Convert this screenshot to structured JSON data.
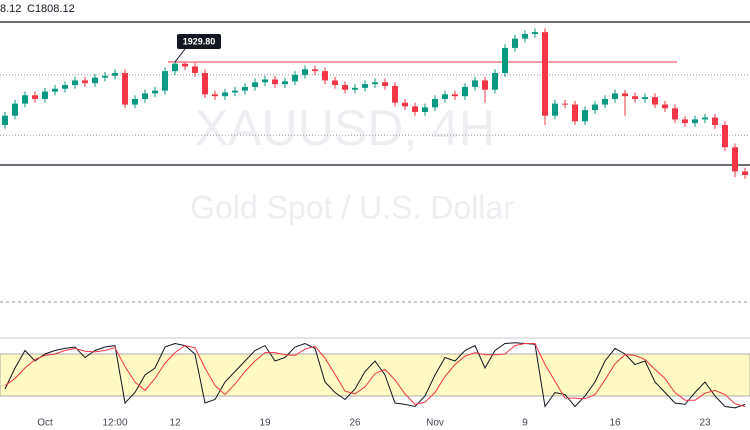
{
  "chart_data": {
    "type": "candlestick",
    "header": [
      "8.12",
      "C1808.12"
    ],
    "watermark": [
      "XAUUSD, 4H",
      "Gold Spot / U.S. Dollar"
    ],
    "categories": [
      null,
      null,
      null,
      null,
      "Oct",
      null,
      null,
      null,
      null,
      null,
      null,
      "12:00",
      null,
      null,
      null,
      null,
      null,
      "12",
      null,
      null,
      null,
      null,
      null,
      null,
      null,
      null,
      "19",
      null,
      null,
      null,
      null,
      null,
      null,
      null,
      null,
      "26",
      null,
      null,
      null,
      null,
      null,
      null,
      null,
      "Nov",
      null,
      null,
      null,
      null,
      null,
      null,
      null,
      null,
      "9",
      null,
      null,
      null,
      null,
      null,
      null,
      null,
      null,
      "16",
      null,
      null,
      null,
      null,
      null,
      null,
      null,
      null,
      "23",
      null,
      null,
      null,
      null
    ],
    "open": [
      1862,
      1872,
      1885,
      1894,
      1890,
      1898,
      1901,
      1905,
      1910,
      1907,
      1913,
      1915,
      1918,
      1884,
      1890,
      1896,
      1899,
      1920,
      1928,
      1925,
      1918,
      1895,
      1893,
      1897,
      1899,
      1903,
      1908,
      1911,
      1906,
      1909,
      1916,
      1922,
      1920,
      1910,
      1905,
      1900,
      1902,
      1906,
      1908,
      1904,
      1886,
      1882,
      1876,
      1881,
      1890,
      1895,
      1893,
      1903,
      1910,
      1900,
      1918,
      1945,
      1955,
      1960,
      1962,
      1872,
      1885,
      1884,
      1866,
      1878,
      1884,
      1890,
      1896,
      1893,
      1890,
      1892,
      1884,
      1880,
      1868,
      1864,
      1868,
      1870,
      1862,
      1838,
      1812
    ],
    "high": [
      1876,
      1889,
      1898,
      1898,
      1902,
      1905,
      1909,
      1914,
      1914,
      1917,
      1919,
      1922,
      1922,
      1894,
      1900,
      1903,
      1924,
      1929.8,
      1929,
      1929,
      1922,
      1899,
      1901,
      1903,
      1907,
      1912,
      1915,
      1915,
      1913,
      1920,
      1926,
      1926,
      1924,
      1914,
      1909,
      1906,
      1910,
      1912,
      1912,
      1908,
      1890,
      1886,
      1885,
      1894,
      1899,
      1899,
      1907,
      1914,
      1914,
      1922,
      1949,
      1959,
      1964,
      1966,
      1966,
      1889,
      1889,
      1888,
      1882,
      1888,
      1894,
      1900,
      1900,
      1897,
      1896,
      1896,
      1888,
      1884,
      1872,
      1872,
      1874,
      1874,
      1866,
      1842,
      1816
    ],
    "low": [
      1858,
      1868,
      1881,
      1886,
      1886,
      1894,
      1897,
      1901,
      1903,
      1903,
      1909,
      1911,
      1880,
      1880,
      1886,
      1892,
      1895,
      1916,
      1921,
      1914,
      1891,
      1889,
      1889,
      1893,
      1895,
      1899,
      1904,
      1902,
      1902,
      1905,
      1912,
      1916,
      1906,
      1901,
      1896,
      1896,
      1898,
      1902,
      1900,
      1882,
      1878,
      1872,
      1872,
      1877,
      1886,
      1889,
      1889,
      1899,
      1886,
      1896,
      1914,
      1941,
      1951,
      1956,
      1862,
      1868,
      1880,
      1862,
      1862,
      1874,
      1880,
      1886,
      1872,
      1886,
      1886,
      1880,
      1876,
      1864,
      1860,
      1860,
      1864,
      1858,
      1834,
      1806,
      1804
    ],
    "close": [
      1872,
      1885,
      1894,
      1890,
      1898,
      1901,
      1905,
      1910,
      1907,
      1913,
      1915,
      1918,
      1884,
      1890,
      1896,
      1899,
      1920,
      1928,
      1925,
      1918,
      1895,
      1893,
      1897,
      1899,
      1903,
      1908,
      1911,
      1906,
      1909,
      1916,
      1922,
      1920,
      1910,
      1905,
      1900,
      1902,
      1906,
      1908,
      1904,
      1886,
      1882,
      1876,
      1881,
      1890,
      1895,
      1893,
      1903,
      1910,
      1900,
      1918,
      1945,
      1955,
      1960,
      1962,
      1872,
      1885,
      1884,
      1866,
      1878,
      1884,
      1890,
      1896,
      1893,
      1890,
      1892,
      1884,
      1880,
      1868,
      1864,
      1868,
      1870,
      1862,
      1838,
      1812,
      1808.12
    ],
    "up_color": "#089981",
    "down_color": "#f23645",
    "ylim": [
      1673.5,
      1996.6
    ],
    "levels": [
      {
        "value": 1972.9,
        "color": "#131722"
      },
      {
        "value": 1818.9,
        "color": "#131722"
      }
    ],
    "dotted_levels": [
      1916,
      1851
    ],
    "annotation": {
      "value": 1929.8,
      "label": "1929.80",
      "color": "#f23645"
    },
    "oscillator": {
      "ylim": [
        0,
        100
      ],
      "band": [
        20,
        80
      ],
      "band_color": "#fff9c4",
      "series": [
        {
          "color": "#131722",
          "values": [
            30,
            60,
            85,
            70,
            80,
            85,
            88,
            90,
            75,
            85,
            90,
            92,
            10,
            25,
            50,
            60,
            90,
            95,
            92,
            80,
            10,
            15,
            40,
            55,
            70,
            85,
            92,
            70,
            75,
            90,
            95,
            88,
            40,
            25,
            15,
            30,
            55,
            70,
            50,
            10,
            8,
            5,
            20,
            50,
            75,
            70,
            85,
            92,
            60,
            85,
            95,
            96,
            95,
            94,
            5,
            25,
            22,
            5,
            20,
            40,
            70,
            88,
            80,
            65,
            70,
            40,
            25,
            10,
            8,
            25,
            40,
            20,
            5,
            3,
            8
          ]
        },
        {
          "color": "#f23645",
          "values": [
            35,
            45,
            60,
            72,
            78,
            80,
            85,
            88,
            84,
            83,
            85,
            89,
            62,
            40,
            28,
            45,
            67,
            82,
            92,
            89,
            60,
            35,
            22,
            37,
            55,
            70,
            82,
            82,
            79,
            78,
            87,
            91,
            74,
            51,
            27,
            23,
            33,
            52,
            58,
            43,
            23,
            8,
            11,
            25,
            48,
            65,
            77,
            82,
            79,
            79,
            80,
            92,
            95,
            95,
            65,
            41,
            17,
            17,
            16,
            22,
            43,
            66,
            79,
            78,
            72,
            58,
            45,
            25,
            14,
            14,
            24,
            28,
            22,
            9,
            5
          ]
        }
      ]
    }
  }
}
